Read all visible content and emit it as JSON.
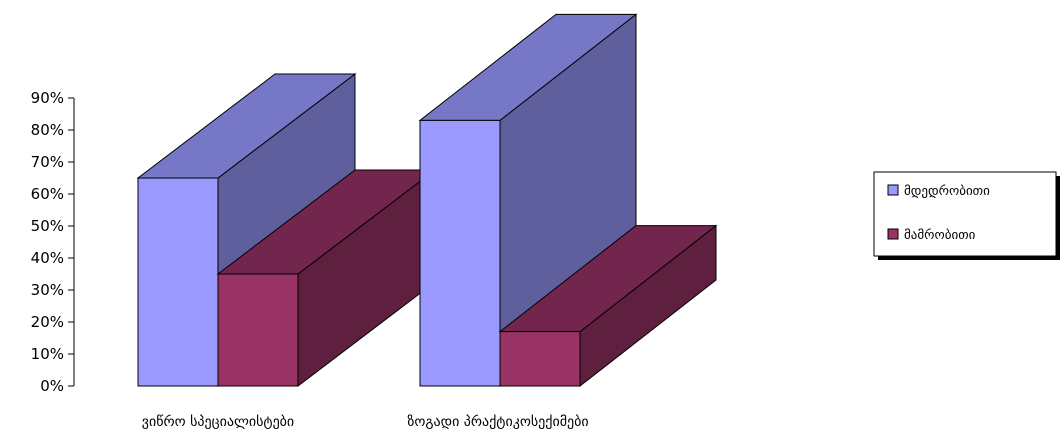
{
  "chart_data": {
    "type": "bar",
    "style": "3d-clustered-column",
    "categories": [
      "ვიწრო სპეციალისტები",
      "ზოგადი პრაქტიკოსექიმები"
    ],
    "series": [
      {
        "name": "მდედრობითი",
        "values": [
          65,
          83
        ],
        "color": "#9999ff"
      },
      {
        "name": "მამრობითი",
        "values": [
          35,
          17
        ],
        "color": "#993366"
      }
    ],
    "ylim": [
      0,
      90
    ],
    "y_ticks": [
      "0%",
      "10%",
      "20%",
      "30%",
      "40%",
      "50%",
      "60%",
      "70%",
      "80%",
      "90%"
    ],
    "grid": false,
    "legend_position": "right"
  }
}
